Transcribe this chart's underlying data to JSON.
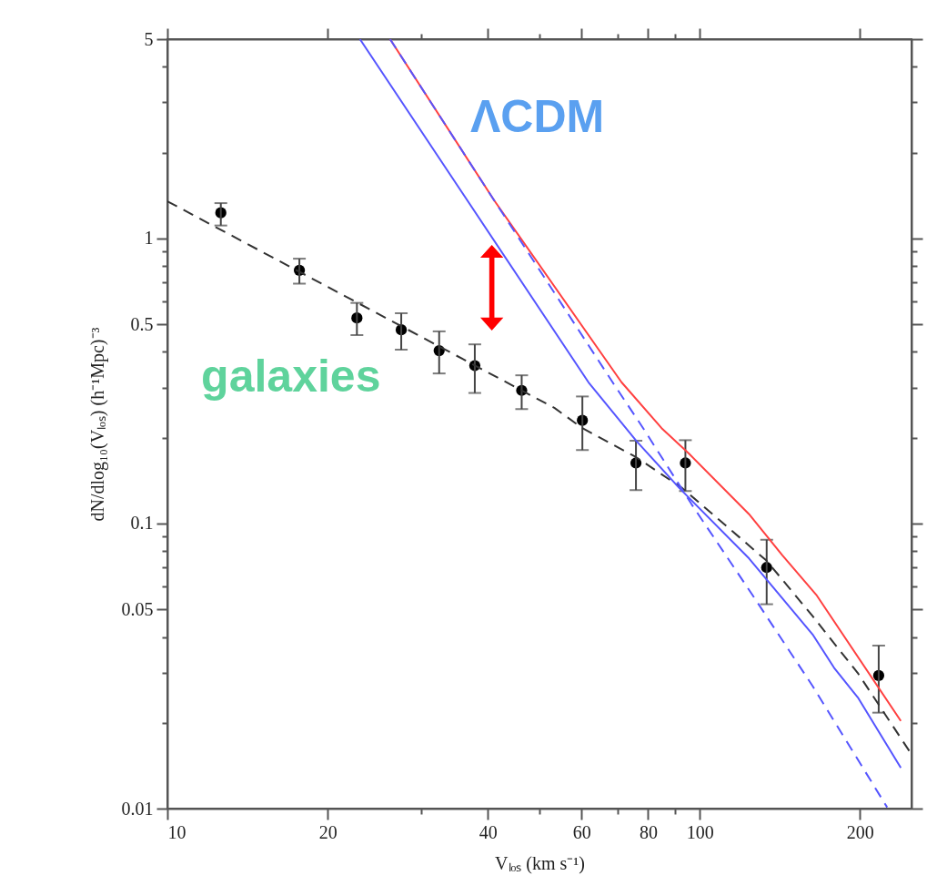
{
  "chart_data": {
    "type": "scatter",
    "xlabel": "Vₗₒₛ (km s⁻¹)",
    "ylabel": "dN/dlog₁₀(Vₗₒₛ)  (h⁻¹Mpc)⁻³",
    "log": "xy",
    "grid": false,
    "xlim": [
      10,
      250
    ],
    "ylim": [
      0.01,
      5
    ],
    "xticks": [
      10,
      20,
      {
        "value": 30,
        "label": null
      },
      40,
      {
        "value": 50,
        "label": null
      },
      60,
      {
        "value": 70,
        "label": null
      },
      80,
      {
        "value": 90,
        "label": null
      },
      100,
      200
    ],
    "yticks": [
      0.01,
      {
        "value": 0.02,
        "label": null
      },
      {
        "value": 0.03,
        "label": null
      },
      {
        "value": 0.04,
        "label": null
      },
      0.05,
      {
        "value": 0.06,
        "label": null
      },
      {
        "value": 0.07,
        "label": null
      },
      {
        "value": 0.08,
        "label": null
      },
      {
        "value": 0.09,
        "label": null
      },
      0.1,
      {
        "value": 0.2,
        "label": null
      },
      {
        "value": 0.3,
        "label": null
      },
      {
        "value": 0.4,
        "label": null
      },
      0.5,
      {
        "value": 0.6,
        "label": null
      },
      {
        "value": 0.7,
        "label": null
      },
      {
        "value": 0.8,
        "label": null
      },
      {
        "value": 0.9,
        "label": null
      },
      1,
      {
        "value": 2,
        "label": null
      },
      {
        "value": 3,
        "label": null
      },
      {
        "value": 4,
        "label": null
      },
      5
    ],
    "annotations": [
      "ΛCDM",
      "galaxies"
    ],
    "series": [
      {
        "color": "#000000",
        "marker": "circle",
        "x": [
          12.6,
          17.7,
          22.7,
          27.5,
          32.4,
          37.8,
          46.3,
          60.2,
          75.9,
          94.0,
          133.6,
          216.9
        ],
        "values": [
          1.23,
          0.773,
          0.526,
          0.478,
          0.404,
          0.358,
          0.293,
          0.23,
          0.163,
          0.163,
          0.0701,
          0.0293
        ],
        "errors": [
          [
            1.11,
            1.33
          ],
          [
            0.694,
            0.849
          ],
          [
            0.458,
            0.594
          ],
          [
            0.407,
            0.546
          ],
          [
            0.336,
            0.472
          ],
          [
            0.287,
            0.425
          ],
          [
            0.252,
            0.331
          ],
          [
            0.181,
            0.279
          ],
          [
            0.131,
            0.195
          ],
          [
            0.13,
            0.196
          ],
          [
            0.0521,
            0.0877
          ],
          [
            0.0217,
            0.0373
          ]
        ]
      },
      {
        "type": "line",
        "color": "#333333",
        "line_style": "dashed",
        "marker": "none",
        "x": [
          10,
          53.4,
          60.2,
          75.9,
          92.8,
          133.6,
          163,
          198.6,
          250
        ],
        "values": [
          1.35,
          0.254,
          0.216,
          0.171,
          0.133,
          0.074,
          0.0473,
          0.0297,
          0.0155
        ]
      },
      {
        "type": "line",
        "color": "#ff4040",
        "line_style": "solid",
        "marker": "none",
        "x": [
          26.2,
          41.1,
          71.3,
          84.8,
          95.4,
          123.7,
          143,
          165.5,
          238.7
        ],
        "values": [
          5,
          1.36,
          0.313,
          0.216,
          0.176,
          0.108,
          0.0773,
          0.0563,
          0.0203
        ]
      },
      {
        "type": "line",
        "color": "#5555ff",
        "line_style": "solid",
        "marker": "none",
        "x": [
          23.0,
          61.8,
          76.2,
          91.6,
          123.8,
          163,
          178.8,
          198.6,
          238.7
        ],
        "values": [
          5,
          0.313,
          0.194,
          0.133,
          0.0754,
          0.0408,
          0.0312,
          0.0244,
          0.0139
        ]
      },
      {
        "type": "line",
        "color": "#5555ff",
        "line_style": "dashed",
        "marker": "none",
        "x": [
          26.2,
          41.1,
          68.6,
          78.3,
          96.5,
          125.5,
          163,
          225
        ],
        "values": [
          5,
          1.36,
          0.313,
          0.216,
          0.117,
          0.0563,
          0.0269,
          0.0101
        ]
      }
    ]
  }
}
